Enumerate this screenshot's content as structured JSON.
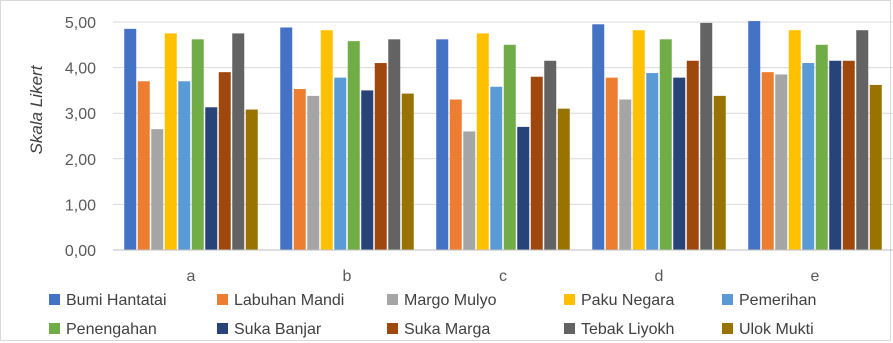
{
  "chart_data": {
    "type": "bar",
    "ylabel": "Skala Likert",
    "xlabel": "",
    "ylim": [
      0,
      5
    ],
    "ytick_step": 1,
    "ytick_labels": [
      "0,00",
      "1,00",
      "2,00",
      "3,00",
      "4,00",
      "5,00"
    ],
    "grid": true,
    "legend_position": "bottom",
    "categories": [
      "a",
      "b",
      "c",
      "d",
      "e"
    ],
    "series": [
      {
        "name": "Bumi Hantatai",
        "color": "#4472C4",
        "values": [
          4.85,
          4.88,
          4.62,
          4.95,
          5.02
        ]
      },
      {
        "name": "Labuhan Mandi",
        "color": "#ED7D31",
        "values": [
          3.7,
          3.53,
          3.3,
          3.78,
          3.9
        ]
      },
      {
        "name": "Margo Mulyo",
        "color": "#A5A5A5",
        "values": [
          2.65,
          3.38,
          2.6,
          3.3,
          3.85
        ]
      },
      {
        "name": "Paku Negara",
        "color": "#FFC000",
        "values": [
          4.75,
          4.82,
          4.75,
          4.82,
          4.82
        ]
      },
      {
        "name": "Pemerihan",
        "color": "#5B9BD5",
        "values": [
          3.7,
          3.78,
          3.58,
          3.88,
          4.1
        ]
      },
      {
        "name": "Penengahan",
        "color": "#70AD47",
        "values": [
          4.62,
          4.58,
          4.5,
          4.62,
          4.5
        ]
      },
      {
        "name": "Suka Banjar",
        "color": "#264478",
        "values": [
          3.13,
          3.5,
          2.7,
          3.78,
          4.15
        ]
      },
      {
        "name": "Suka Marga",
        "color": "#9E480E",
        "values": [
          3.9,
          4.1,
          3.8,
          4.15,
          4.15
        ]
      },
      {
        "name": "Tebak Liyokh",
        "color": "#636363",
        "values": [
          4.75,
          4.62,
          4.15,
          4.98,
          4.82
        ]
      },
      {
        "name": "Ulok Mukti",
        "color": "#997300",
        "values": [
          3.08,
          3.43,
          3.1,
          3.38,
          3.62
        ]
      }
    ]
  }
}
